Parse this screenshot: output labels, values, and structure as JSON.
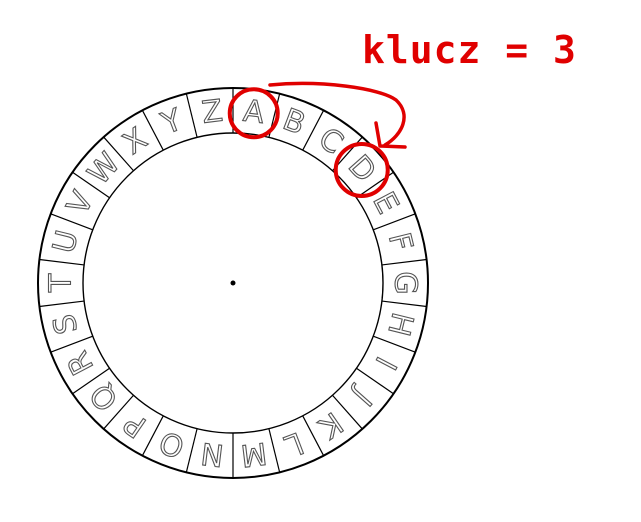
{
  "key_label": "klucz = 3",
  "alphabet": [
    "A",
    "B",
    "C",
    "D",
    "E",
    "F",
    "G",
    "H",
    "I",
    "J",
    "K",
    "L",
    "M",
    "N",
    "O",
    "P",
    "Q",
    "R",
    "S",
    "T",
    "U",
    "V",
    "W",
    "X",
    "Y",
    "Z"
  ],
  "highlight": {
    "plain_letter": "A",
    "cipher_letter": "D",
    "shift": 3,
    "color": "#e00000"
  },
  "colors": {
    "ring_line": "#000000",
    "letters": "#555555",
    "annotation": "#e00000"
  }
}
